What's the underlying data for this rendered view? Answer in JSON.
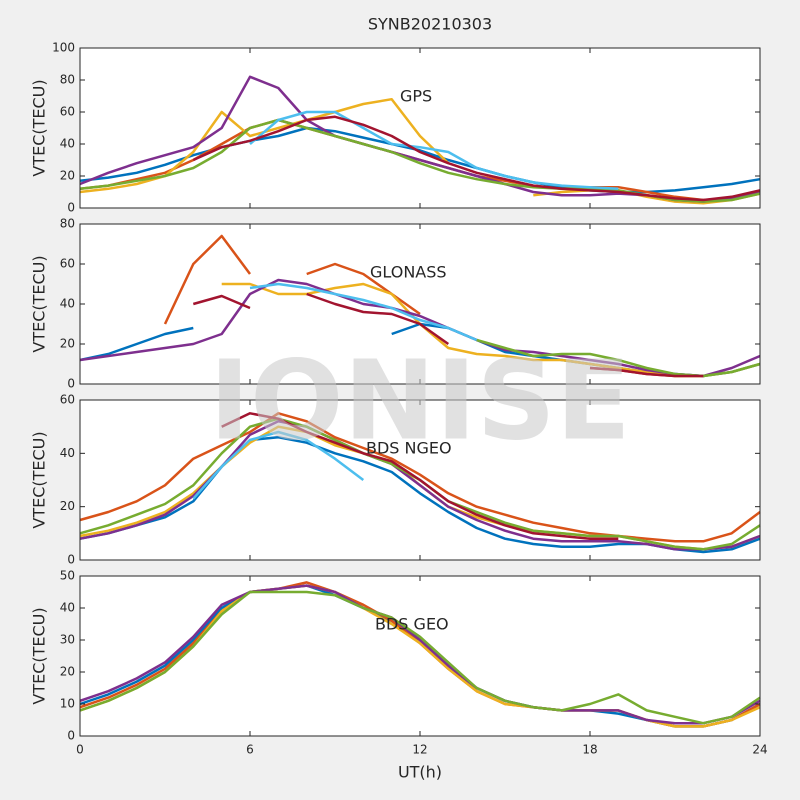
{
  "title": "SYNB20210303",
  "watermark": "IONISE",
  "chart_data": [
    {
      "type": "line",
      "annotation": "GPS",
      "ylabel": "VTEC(TECU)",
      "x": [
        0,
        1,
        2,
        3,
        4,
        5,
        6,
        7,
        8,
        9,
        10,
        11,
        12,
        13,
        14,
        15,
        16,
        17,
        18,
        19,
        20,
        21,
        22,
        23,
        24
      ],
      "xlim": [
        0,
        24
      ],
      "xticks": [
        0,
        6,
        12,
        18,
        24
      ],
      "ylim": [
        0,
        100
      ],
      "yticks": [
        0,
        20,
        40,
        60,
        80,
        100
      ],
      "series": [
        {
          "color": "#0072bd",
          "values": [
            17,
            19,
            22,
            27,
            33,
            38,
            42,
            45,
            50,
            48,
            44,
            40,
            36,
            30,
            25,
            20,
            16,
            13,
            11,
            10,
            10,
            11,
            13,
            15,
            18
          ]
        },
        {
          "color": "#d95319",
          "values": [
            12,
            14,
            18,
            22,
            30,
            40,
            50,
            55,
            50,
            45,
            40,
            35,
            30,
            25,
            20,
            17,
            14,
            12,
            13,
            13,
            10,
            7,
            5,
            6,
            10
          ]
        },
        {
          "color": "#edb120",
          "values": [
            10,
            12,
            15,
            20,
            35,
            60,
            45,
            50,
            55,
            60,
            65,
            68,
            45,
            28,
            null,
            null,
            8,
            10,
            11,
            11,
            7,
            4,
            3,
            5,
            9
          ]
        },
        {
          "color": "#7e2f8e",
          "values": [
            15,
            22,
            28,
            33,
            38,
            50,
            82,
            75,
            55,
            45,
            40,
            35,
            30,
            25,
            20,
            15,
            10,
            8,
            8,
            9,
            8,
            5,
            4,
            6,
            10
          ]
        },
        {
          "color": "#77ac30",
          "values": [
            12,
            14,
            17,
            20,
            25,
            35,
            50,
            55,
            50,
            45,
            40,
            35,
            28,
            22,
            18,
            15,
            13,
            12,
            12,
            11,
            8,
            5,
            4,
            5,
            9
          ]
        },
        {
          "color": "#4dbeee",
          "values": [
            null,
            null,
            null,
            null,
            null,
            null,
            40,
            55,
            60,
            60,
            50,
            40,
            38,
            35,
            25,
            20,
            16,
            14,
            13,
            12,
            null,
            null,
            null,
            null,
            null
          ]
        },
        {
          "color": "#a2142f",
          "values": [
            null,
            null,
            null,
            null,
            30,
            38,
            42,
            48,
            55,
            57,
            52,
            45,
            35,
            28,
            22,
            18,
            14,
            12,
            11,
            10,
            8,
            6,
            5,
            7,
            11
          ]
        }
      ]
    },
    {
      "type": "line",
      "annotation": "GLONASS",
      "ylabel": "VTEC(TECU)",
      "x": [
        0,
        1,
        2,
        3,
        4,
        5,
        6,
        7,
        8,
        9,
        10,
        11,
        12,
        13,
        14,
        15,
        16,
        17,
        18,
        19,
        20,
        21,
        22,
        23,
        24
      ],
      "xlim": [
        0,
        24
      ],
      "xticks": [
        0,
        6,
        12,
        18,
        24
      ],
      "ylim": [
        0,
        80
      ],
      "yticks": [
        0,
        20,
        40,
        60,
        80
      ],
      "series": [
        {
          "color": "#0072bd",
          "values": [
            12,
            15,
            20,
            25,
            28,
            null,
            null,
            null,
            null,
            null,
            null,
            25,
            30,
            28,
            22,
            16,
            14,
            12,
            10,
            8,
            6,
            5,
            4,
            6,
            10
          ]
        },
        {
          "color": "#d95319",
          "values": [
            null,
            null,
            null,
            30,
            60,
            74,
            55,
            null,
            55,
            60,
            55,
            45,
            35,
            null,
            null,
            null,
            null,
            null,
            8,
            7,
            5,
            4,
            4,
            null,
            null
          ]
        },
        {
          "color": "#edb120",
          "values": [
            null,
            null,
            null,
            null,
            null,
            50,
            50,
            45,
            45,
            48,
            50,
            45,
            30,
            18,
            15,
            14,
            12,
            12,
            10,
            8,
            6,
            4,
            4,
            6,
            10
          ]
        },
        {
          "color": "#7e2f8e",
          "values": [
            12,
            14,
            16,
            18,
            20,
            25,
            45,
            52,
            50,
            45,
            40,
            38,
            34,
            28,
            22,
            17,
            16,
            14,
            12,
            10,
            7,
            5,
            4,
            8,
            14
          ]
        },
        {
          "color": "#77ac30",
          "values": [
            null,
            null,
            null,
            null,
            null,
            null,
            null,
            null,
            null,
            null,
            null,
            null,
            null,
            null,
            22,
            18,
            14,
            15,
            15,
            12,
            8,
            5,
            4,
            6,
            10
          ]
        },
        {
          "color": "#4dbeee",
          "values": [
            null,
            null,
            null,
            null,
            null,
            null,
            48,
            50,
            48,
            45,
            42,
            38,
            32,
            28,
            22,
            null,
            null,
            null,
            null,
            null,
            null,
            null,
            null,
            null,
            null
          ]
        },
        {
          "color": "#a2142f",
          "values": [
            null,
            null,
            null,
            null,
            40,
            44,
            38,
            null,
            45,
            40,
            36,
            35,
            30,
            20,
            null,
            null,
            null,
            null,
            8,
            7,
            5,
            4,
            4,
            null,
            null
          ]
        }
      ]
    },
    {
      "type": "line",
      "annotation": "BDS NGEO",
      "ylabel": "VTEC(TECU)",
      "x": [
        0,
        1,
        2,
        3,
        4,
        5,
        6,
        7,
        8,
        9,
        10,
        11,
        12,
        13,
        14,
        15,
        16,
        17,
        18,
        19,
        20,
        21,
        22,
        23,
        24
      ],
      "xlim": [
        0,
        24
      ],
      "xticks": [
        0,
        6,
        12,
        18,
        24
      ],
      "ylim": [
        0,
        60
      ],
      "yticks": [
        0,
        20,
        40,
        60
      ],
      "series": [
        {
          "color": "#0072bd",
          "values": [
            8,
            10,
            13,
            16,
            22,
            35,
            45,
            46,
            44,
            40,
            37,
            33,
            25,
            18,
            12,
            8,
            6,
            5,
            5,
            6,
            6,
            4,
            3,
            4,
            8
          ]
        },
        {
          "color": "#d95319",
          "values": [
            15,
            18,
            22,
            28,
            38,
            43,
            48,
            55,
            52,
            46,
            42,
            38,
            32,
            25,
            20,
            17,
            14,
            12,
            10,
            9,
            8,
            7,
            7,
            10,
            18
          ]
        },
        {
          "color": "#edb120",
          "values": [
            9,
            11,
            14,
            18,
            25,
            35,
            44,
            50,
            48,
            43,
            40,
            37,
            28,
            20,
            16,
            13,
            11,
            10,
            9,
            9,
            7,
            5,
            4,
            5,
            9
          ]
        },
        {
          "color": "#7e2f8e",
          "values": [
            8,
            10,
            13,
            17,
            24,
            35,
            47,
            52,
            50,
            45,
            40,
            36,
            28,
            20,
            15,
            11,
            8,
            7,
            7,
            7,
            6,
            4,
            4,
            5,
            9
          ]
        },
        {
          "color": "#77ac30",
          "values": [
            10,
            13,
            17,
            21,
            28,
            40,
            50,
            53,
            50,
            45,
            40,
            36,
            30,
            22,
            18,
            14,
            11,
            10,
            9,
            9,
            7,
            5,
            4,
            6,
            13
          ]
        },
        {
          "color": "#4dbeee",
          "values": [
            null,
            null,
            null,
            null,
            23,
            35,
            45,
            48,
            45,
            38,
            30,
            null,
            null,
            null,
            null,
            null,
            null,
            null,
            null,
            null,
            null,
            null,
            null,
            null,
            null
          ]
        },
        {
          "color": "#a2142f",
          "values": [
            null,
            null,
            null,
            null,
            null,
            50,
            55,
            53,
            48,
            44,
            40,
            37,
            30,
            22,
            17,
            13,
            10,
            9,
            8,
            8,
            null,
            null,
            null,
            null,
            null
          ]
        }
      ]
    },
    {
      "type": "line",
      "annotation": "BDS GEO",
      "ylabel": "VTEC(TECU)",
      "xlabel": "UT(h)",
      "x": [
        0,
        1,
        2,
        3,
        4,
        5,
        6,
        7,
        8,
        9,
        10,
        11,
        12,
        13,
        14,
        15,
        16,
        17,
        18,
        19,
        20,
        21,
        22,
        23,
        24
      ],
      "xlim": [
        0,
        24
      ],
      "xticks": [
        0,
        6,
        12,
        18,
        24
      ],
      "ylim": [
        0,
        50
      ],
      "yticks": [
        0,
        10,
        20,
        30,
        40,
        50
      ],
      "series": [
        {
          "color": "#0072bd",
          "values": [
            10,
            13,
            17,
            22,
            30,
            40,
            45,
            46,
            47,
            44,
            40,
            36,
            30,
            22,
            15,
            11,
            9,
            8,
            8,
            7,
            5,
            3,
            3,
            5,
            10
          ]
        },
        {
          "color": "#d95319",
          "values": [
            9,
            12,
            16,
            21,
            29,
            39,
            45,
            46,
            48,
            45,
            41,
            36,
            29,
            21,
            14,
            10,
            9,
            8,
            8,
            8,
            5,
            3,
            3,
            5,
            10
          ]
        },
        {
          "color": "#edb120",
          "values": [
            8,
            11,
            15,
            20,
            28,
            39,
            45,
            46,
            47,
            45,
            40,
            35,
            29,
            21,
            14,
            10,
            9,
            8,
            8,
            8,
            5,
            3,
            3,
            5,
            9
          ]
        },
        {
          "color": "#7e2f8e",
          "values": [
            11,
            14,
            18,
            23,
            31,
            41,
            45,
            46,
            47,
            45,
            40,
            37,
            30,
            22,
            15,
            11,
            9,
            8,
            8,
            8,
            5,
            4,
            4,
            6,
            11
          ]
        },
        {
          "color": "#77ac30",
          "values": [
            8,
            11,
            15,
            20,
            28,
            38,
            45,
            45,
            45,
            44,
            40,
            37,
            31,
            23,
            15,
            11,
            9,
            8,
            10,
            13,
            8,
            6,
            4,
            6,
            12
          ]
        }
      ]
    }
  ]
}
